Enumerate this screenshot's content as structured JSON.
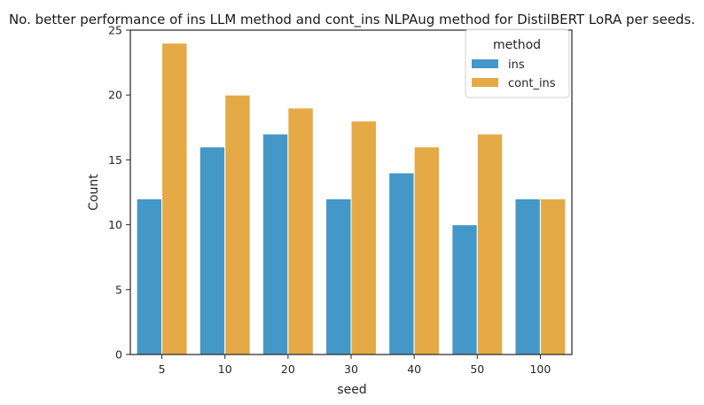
{
  "chart_data": {
    "type": "bar",
    "title": "No. better performance of ins LLM method and cont_ins NLPAug method for DistilBERT LoRA per seeds.",
    "xlabel": "seed",
    "ylabel": "Count",
    "categories": [
      "5",
      "10",
      "20",
      "30",
      "40",
      "50",
      "100"
    ],
    "series": [
      {
        "name": "ins",
        "color": "#4398c8",
        "values": [
          12,
          16,
          17,
          12,
          14,
          10,
          12
        ]
      },
      {
        "name": "cont_ins",
        "color": "#e5aa45",
        "values": [
          24,
          20,
          19,
          18,
          16,
          17,
          12
        ]
      }
    ],
    "ylim": [
      0,
      25
    ],
    "yticks": [
      0,
      5,
      10,
      15,
      20,
      25
    ],
    "grid": false,
    "legend": {
      "title": "method",
      "placement": "top-right"
    }
  }
}
